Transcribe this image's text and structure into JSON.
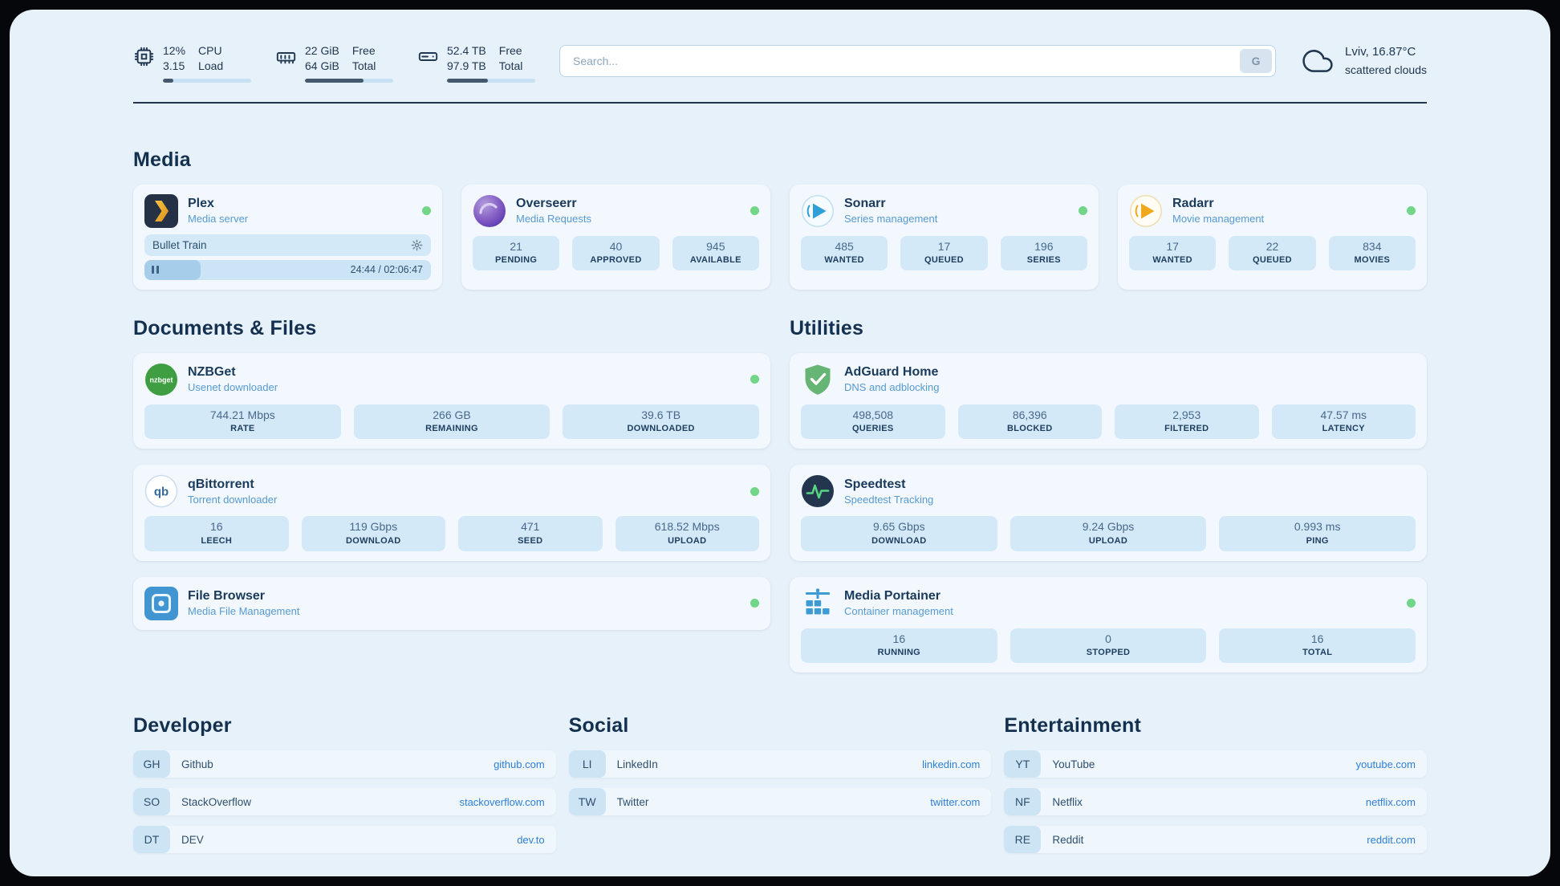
{
  "topbar": {
    "cpu": {
      "usage": "12%",
      "load": "3.15",
      "usage_label": "CPU",
      "load_label": "Load",
      "bar_percent": 12
    },
    "ram": {
      "free": "22 GiB",
      "total": "64 GiB",
      "free_label": "Free",
      "total_label": "Total",
      "bar_percent": 66
    },
    "disk": {
      "free": "52.4 TB",
      "total": "97.9 TB",
      "free_label": "Free",
      "total_label": "Total",
      "bar_percent": 46
    },
    "search": {
      "placeholder": "Search...",
      "button_label": "G"
    },
    "weather": {
      "location": "Lviv, 16.87°C",
      "description": "scattered clouds"
    }
  },
  "sections": {
    "media": {
      "title": "Media",
      "plex": {
        "name": "Plex",
        "subtitle": "Media server",
        "now_playing": "Bullet Train",
        "time": "24:44 / 02:06:47",
        "progress_percent": 19.5
      },
      "overseerr": {
        "name": "Overseerr",
        "subtitle": "Media Requests",
        "stats": [
          {
            "value": "21",
            "label": "PENDING"
          },
          {
            "value": "40",
            "label": "APPROVED"
          },
          {
            "value": "945",
            "label": "AVAILABLE"
          }
        ]
      },
      "sonarr": {
        "name": "Sonarr",
        "subtitle": "Series management",
        "stats": [
          {
            "value": "485",
            "label": "WANTED"
          },
          {
            "value": "17",
            "label": "QUEUED"
          },
          {
            "value": "196",
            "label": "SERIES"
          }
        ]
      },
      "radarr": {
        "name": "Radarr",
        "subtitle": "Movie management",
        "stats": [
          {
            "value": "17",
            "label": "WANTED"
          },
          {
            "value": "22",
            "label": "QUEUED"
          },
          {
            "value": "834",
            "label": "MOVIES"
          }
        ]
      }
    },
    "documents": {
      "title": "Documents & Files",
      "nzbget": {
        "name": "NZBGet",
        "subtitle": "Usenet downloader",
        "stats": [
          {
            "value": "744.21 Mbps",
            "label": "RATE"
          },
          {
            "value": "266 GB",
            "label": "REMAINING"
          },
          {
            "value": "39.6 TB",
            "label": "DOWNLOADED"
          }
        ]
      },
      "qbittorrent": {
        "name": "qBittorrent",
        "subtitle": "Torrent downloader",
        "stats": [
          {
            "value": "16",
            "label": "LEECH"
          },
          {
            "value": "119 Gbps",
            "label": "DOWNLOAD"
          },
          {
            "value": "471",
            "label": "SEED"
          },
          {
            "value": "618.52 Mbps",
            "label": "UPLOAD"
          }
        ]
      },
      "filebrowser": {
        "name": "File Browser",
        "subtitle": "Media File Management"
      }
    },
    "utilities": {
      "title": "Utilities",
      "adguard": {
        "name": "AdGuard Home",
        "subtitle": "DNS and adblocking",
        "stats": [
          {
            "value": "498,508",
            "label": "QUERIES"
          },
          {
            "value": "86,396",
            "label": "BLOCKED"
          },
          {
            "value": "2,953",
            "label": "FILTERED"
          },
          {
            "value": "47.57 ms",
            "label": "LATENCY"
          }
        ]
      },
      "speedtest": {
        "name": "Speedtest",
        "subtitle": "Speedtest Tracking",
        "stats": [
          {
            "value": "9.65 Gbps",
            "label": "DOWNLOAD"
          },
          {
            "value": "9.24 Gbps",
            "label": "UPLOAD"
          },
          {
            "value": "0.993 ms",
            "label": "PING"
          }
        ]
      },
      "portainer": {
        "name": "Media Portainer",
        "subtitle": "Container management",
        "stats": [
          {
            "value": "16",
            "label": "RUNNING"
          },
          {
            "value": "0",
            "label": "STOPPED"
          },
          {
            "value": "16",
            "label": "TOTAL"
          }
        ]
      }
    },
    "bookmarks": [
      {
        "title": "Developer",
        "items": [
          {
            "abbr": "GH",
            "name": "Github",
            "url": "github.com"
          },
          {
            "abbr": "SO",
            "name": "StackOverflow",
            "url": "stackoverflow.com"
          },
          {
            "abbr": "DT",
            "name": "DEV",
            "url": "dev.to"
          }
        ]
      },
      {
        "title": "Social",
        "items": [
          {
            "abbr": "LI",
            "name": "LinkedIn",
            "url": "linkedin.com"
          },
          {
            "abbr": "TW",
            "name": "Twitter",
            "url": "twitter.com"
          }
        ]
      },
      {
        "title": "Entertainment",
        "items": [
          {
            "abbr": "YT",
            "name": "YouTube",
            "url": "youtube.com"
          },
          {
            "abbr": "NF",
            "name": "Netflix",
            "url": "netflix.com"
          },
          {
            "abbr": "RE",
            "name": "Reddit",
            "url": "reddit.com"
          }
        ]
      }
    ]
  },
  "colors": {
    "status_green": "#72d689",
    "link": "#2f7fd6",
    "tile": "#d3e9f8",
    "page_bg": "#e7f1fa"
  }
}
